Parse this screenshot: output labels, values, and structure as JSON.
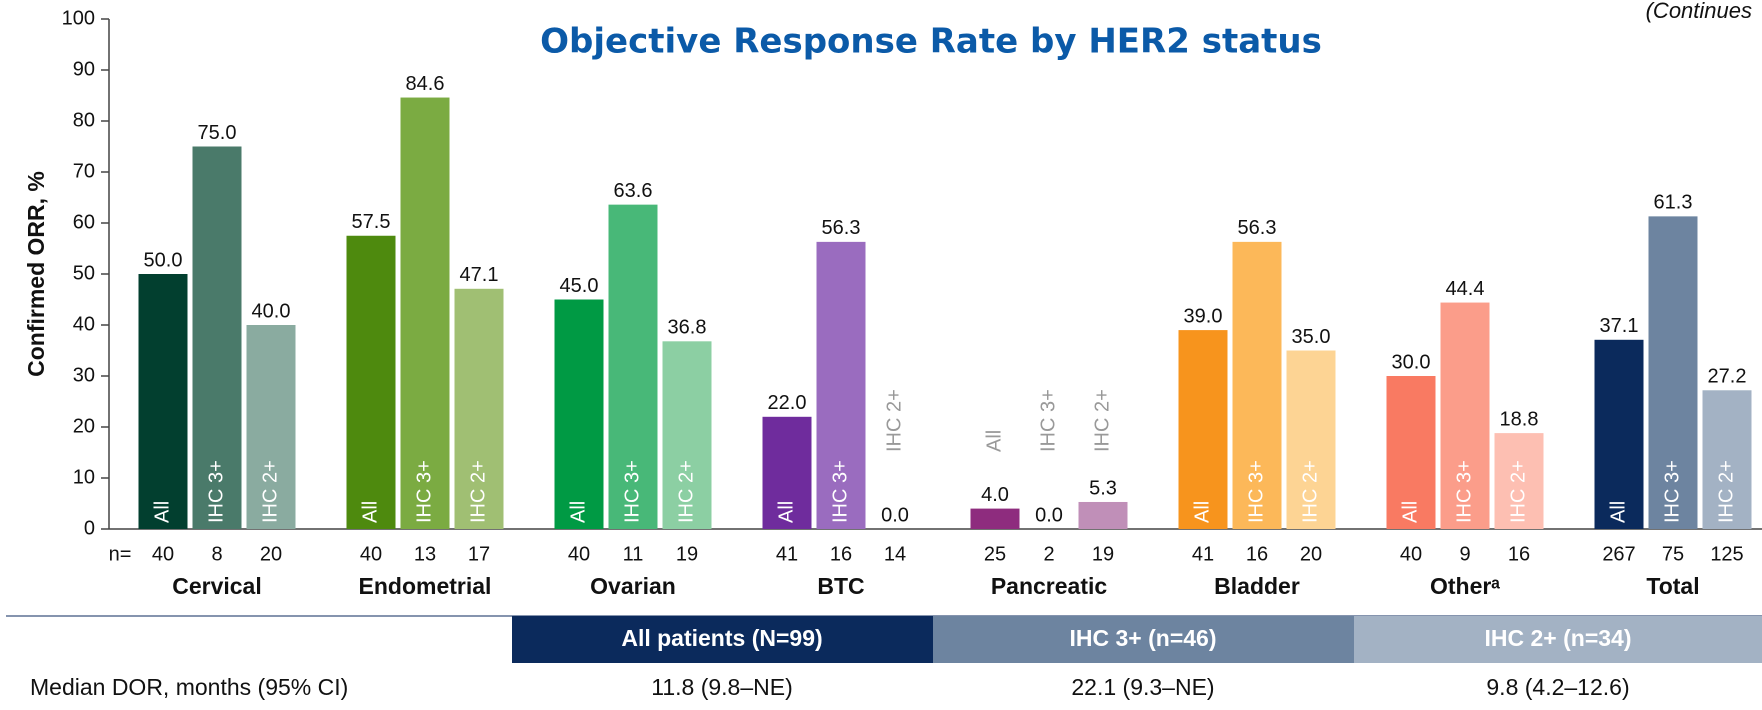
{
  "chart_data": {
    "type": "bar",
    "title": "Objective Response Rate by HER2 status",
    "note": "(Continues",
    "y_label": "Confirmed ORR, %",
    "categories": [
      "Cervical",
      "Endometrial",
      "Ovarian",
      "BTC",
      "Pancreatic",
      "Bladder",
      "Otherᵃ",
      "Total"
    ],
    "n_label": "n=",
    "ylim": [
      0,
      100
    ],
    "yticks": [
      0,
      10,
      20,
      30,
      40,
      50,
      60,
      70,
      80,
      90,
      100
    ],
    "series": [
      {
        "name": "All",
        "colors": [
          "#023f2f",
          "#4e8a0e",
          "#009a44",
          "#6f2c9d",
          "#8e2c7e",
          "#f7941d",
          "#f97a62",
          "#0b2a5c"
        ],
        "values": [
          50.0,
          57.5,
          45.0,
          22.0,
          4.0,
          39.0,
          30.0,
          37.1
        ],
        "value_labels": [
          "50.0",
          "57.5",
          "45.0",
          "22.0",
          "4.0",
          "39.0",
          "30.0",
          "37.1"
        ],
        "n": [
          40,
          40,
          40,
          41,
          25,
          41,
          40,
          267
        ]
      },
      {
        "name": "IHC 3+",
        "colors": [
          "#4a7a6a",
          "#7bab42",
          "#48b878",
          "#9a6cbf",
          "#b06aa4",
          "#fcb859",
          "#fb9d8a",
          "#6d84a0"
        ],
        "values": [
          75.0,
          84.6,
          63.6,
          56.3,
          0.0,
          56.3,
          44.4,
          61.3
        ],
        "value_labels": [
          "75.0",
          "84.6",
          "63.6",
          "56.3",
          "0.0",
          "56.3",
          "44.4",
          "61.3"
        ],
        "n": [
          8,
          13,
          11,
          16,
          2,
          16,
          9,
          75
        ]
      },
      {
        "name": "IHC 2+",
        "colors": [
          "#8aaba0",
          "#a0bf73",
          "#8ccfa3",
          "#c0a8d8",
          "#c08fb8",
          "#fdd494",
          "#fdbfb2",
          "#a3b2c4"
        ],
        "values": [
          40.0,
          47.1,
          36.8,
          0.0,
          5.3,
          35.0,
          18.8,
          27.2
        ],
        "value_labels": [
          "40.0",
          "47.1",
          "36.8",
          "0.0",
          "5.3",
          "35.0",
          "18.8",
          "27.2"
        ],
        "n": [
          20,
          17,
          19,
          14,
          19,
          20,
          16,
          125
        ]
      }
    ]
  },
  "table": {
    "columns": [
      "All patients (N=99)",
      "IHC 3+ (n=46)",
      "IHC 2+ (n=34)"
    ],
    "rows": [
      [
        "Median DOR, months (95% CI)",
        "11.8 (9.8–NE)",
        "22.1 (9.3–NE)",
        "9.8 (4.2–12.6)"
      ]
    ]
  }
}
